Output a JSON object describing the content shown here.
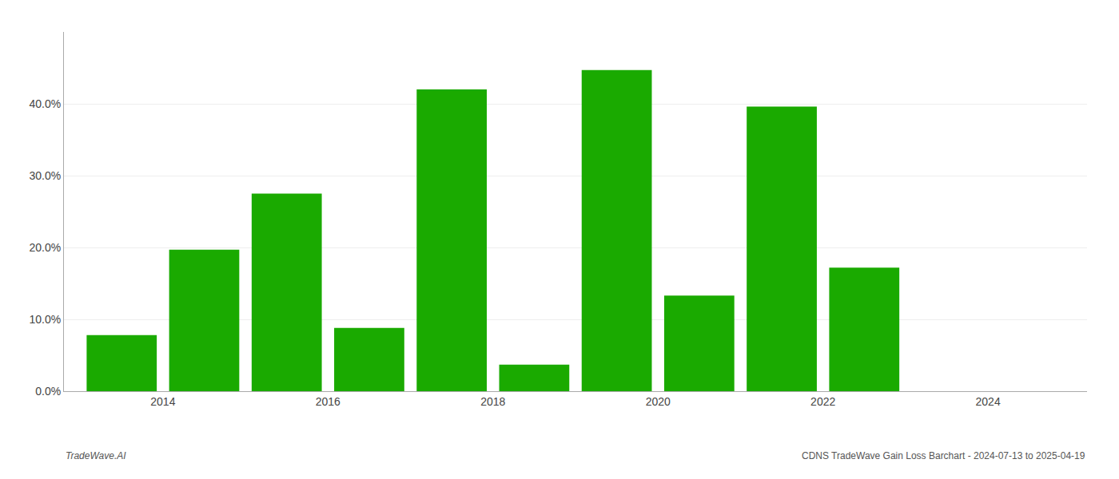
{
  "chart_data": {
    "type": "bar",
    "x": [
      2013.5,
      2014.5,
      2015.5,
      2016.5,
      2017.5,
      2018.5,
      2019.5,
      2020.5,
      2021.5,
      2022.5
    ],
    "values": [
      0.078,
      0.197,
      0.275,
      0.088,
      0.42,
      0.037,
      0.447,
      0.133,
      0.396,
      0.172
    ],
    "color": "#1aaa00",
    "xlim": [
      2012.8,
      2025.2
    ],
    "xticks": [
      2014,
      2016,
      2018,
      2020,
      2022,
      2024
    ],
    "ylim": [
      0.0,
      0.5
    ],
    "yticks": [
      {
        "value": 0.0,
        "label": "0.0%"
      },
      {
        "value": 0.1,
        "label": "10.0%"
      },
      {
        "value": 0.2,
        "label": "20.0%"
      },
      {
        "value": 0.3,
        "label": "30.0%"
      },
      {
        "value": 0.4,
        "label": "40.0%"
      }
    ],
    "grid": true,
    "annotations": [
      "TradeWave.AI",
      "CDNS TradeWave Gain Loss Barchart - 2024-07-13 to 2025-04-19"
    ]
  }
}
